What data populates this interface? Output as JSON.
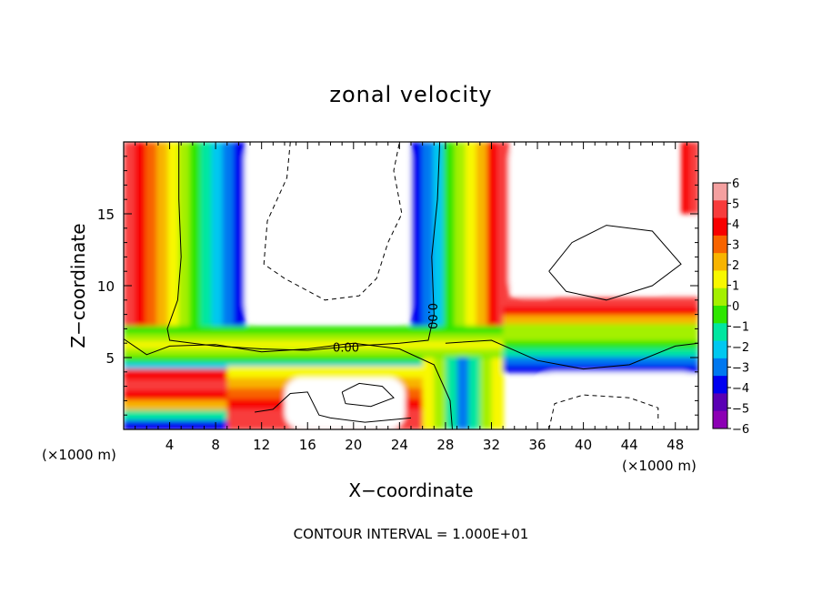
{
  "chart_data": {
    "type": "heatmap",
    "title": "zonal velocity",
    "xlabel": "X−coordinate",
    "ylabel": "Z−coordinate",
    "x_unit_left": "(×1000 m)",
    "x_unit_right": "(×1000 m)",
    "xlim": [
      0,
      50
    ],
    "ylim": [
      0,
      20
    ],
    "x_ticks": [
      4,
      8,
      12,
      16,
      20,
      24,
      28,
      32,
      36,
      40,
      44,
      48
    ],
    "y_ticks": [
      5,
      10,
      15
    ],
    "colorbar": {
      "levels": [
        6,
        5,
        4,
        3,
        2,
        1,
        0,
        -1,
        -2,
        -3,
        -4,
        -5,
        -6
      ],
      "level_labels": [
        "6",
        "5",
        "4",
        "3",
        "2",
        "1",
        "0",
        "−1",
        "−2",
        "−3",
        "−4",
        "−5",
        "−6"
      ],
      "colors": [
        "#f4a0a0",
        "#f83c3c",
        "#f80000",
        "#f86400",
        "#f8b400",
        "#f8f800",
        "#a4f000",
        "#2ee600",
        "#00e6a0",
        "#00c8f0",
        "#0078f0",
        "#0000f0",
        "#5a00b4",
        "#8c00b4"
      ]
    },
    "contour_interval": "CONTOUR INTERVAL = 1.000E+01",
    "contour_labels": [
      "0.00",
      "0.00"
    ]
  }
}
